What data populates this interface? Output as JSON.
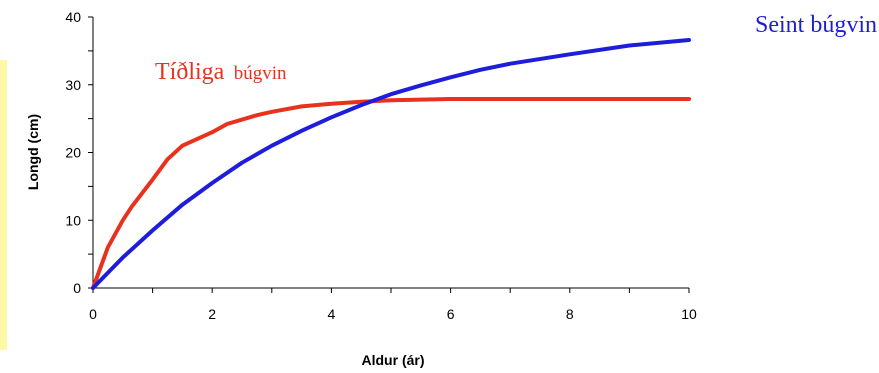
{
  "chart_data": {
    "type": "line",
    "title": "",
    "xlabel": "Aldur (ár)",
    "ylabel": "Longd (cm)",
    "xlim": [
      0,
      10
    ],
    "ylim": [
      0,
      40
    ],
    "x_ticks": [
      0,
      2,
      4,
      6,
      8,
      10
    ],
    "y_ticks": [
      0,
      10,
      20,
      30,
      40
    ],
    "grid": false,
    "legend": "none",
    "annotations": {
      "early_main": "Tíðliga",
      "early_sub": "búgvin",
      "late": "Seint búgvin"
    },
    "series": [
      {
        "color": "#e8321e",
        "points": [
          [
            0,
            0
          ],
          [
            0.25,
            6
          ],
          [
            0.5,
            10
          ],
          [
            0.65,
            12
          ],
          [
            1,
            16
          ],
          [
            1.25,
            19
          ],
          [
            1.5,
            21
          ],
          [
            2,
            23
          ],
          [
            2.25,
            24.2
          ],
          [
            2.75,
            25.5
          ],
          [
            3,
            26
          ],
          [
            3.5,
            26.8
          ],
          [
            4,
            27.2
          ],
          [
            4.5,
            27.5
          ],
          [
            5,
            27.7
          ],
          [
            6,
            27.9
          ],
          [
            7,
            27.9
          ],
          [
            8,
            27.9
          ],
          [
            9,
            27.9
          ],
          [
            10,
            27.9
          ]
        ]
      },
      {
        "color": "#1d1ddb",
        "points": [
          [
            0,
            0
          ],
          [
            0.5,
            4.5
          ],
          [
            1,
            8.5
          ],
          [
            1.5,
            12.3
          ],
          [
            2,
            15.5
          ],
          [
            2.5,
            18.5
          ],
          [
            3,
            21
          ],
          [
            3.5,
            23.2
          ],
          [
            4,
            25.2
          ],
          [
            4.5,
            27
          ],
          [
            5,
            28.6
          ],
          [
            5.5,
            29.9
          ],
          [
            6,
            31.1
          ],
          [
            6.5,
            32.2
          ],
          [
            7,
            33.1
          ],
          [
            8,
            34.5
          ],
          [
            9,
            35.8
          ],
          [
            10,
            36.6
          ]
        ]
      }
    ]
  }
}
